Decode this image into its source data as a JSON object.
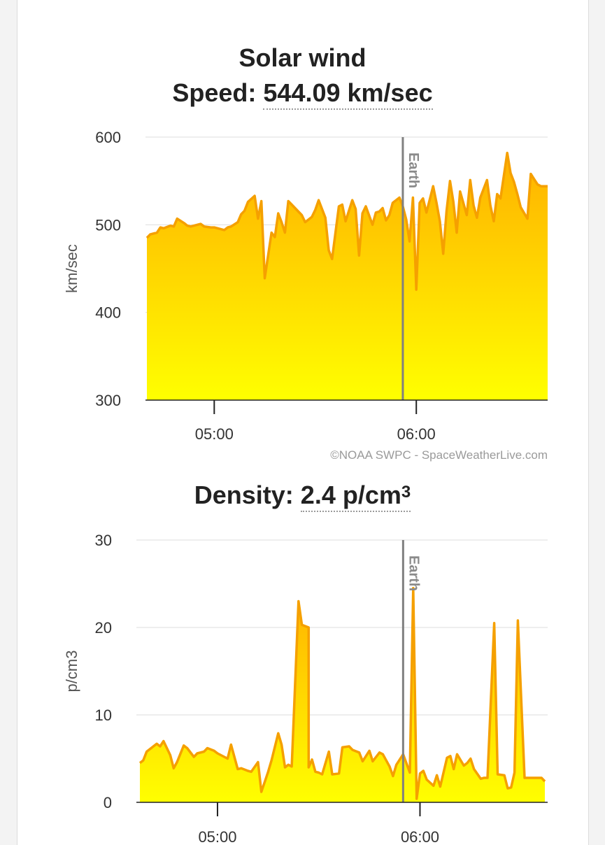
{
  "speed_panel": {
    "title": "Solar wind",
    "label": "Speed:",
    "value": "544.09 km/sec",
    "credit": "©NOAA SWPC - SpaceWeatherLive.com"
  },
  "density_panel": {
    "label": "Density:",
    "value_main": "2.4 p/cm",
    "value_sup": "3"
  },
  "colors": {
    "line": "#f5a000",
    "fill_top": "#ffb000",
    "fill_bottom": "#ffff00",
    "marker": "#808080",
    "grid": "#dddddd"
  },
  "chart_data": [
    {
      "type": "area",
      "ylabel": "km/sec",
      "ylim": [
        300,
        600
      ],
      "y_ticks": [
        "600",
        "500",
        "400",
        "300"
      ],
      "x_ticks": [
        "05:00",
        "06:00"
      ],
      "xlim": [
        "04:40",
        "06:39"
      ],
      "marker": {
        "label": "Earth",
        "x": "05:56"
      },
      "series": [
        {
          "x": [
            "04:40",
            "04:41",
            "04:43",
            "04:44",
            "04:45",
            "04:47",
            "04:48",
            "04:49",
            "04:51",
            "04:52",
            "04:53",
            "04:55",
            "04:56",
            "04:57",
            "04:59",
            "05:00",
            "05:01",
            "05:03",
            "05:04",
            "05:05",
            "05:07",
            "05:08",
            "05:09",
            "05:10",
            "05:12",
            "05:13",
            "05:14",
            "05:15",
            "05:17",
            "05:18",
            "05:19",
            "05:20",
            "05:21",
            "05:22",
            "05:23",
            "05:25",
            "05:26",
            "05:27",
            "05:29",
            "05:30",
            "05:31",
            "05:33",
            "05:34",
            "05:35",
            "05:37",
            "05:38",
            "05:39",
            "05:41",
            "05:42",
            "05:43",
            "05:44",
            "05:45",
            "05:47",
            "05:48",
            "05:49",
            "05:50",
            "05:51",
            "05:52",
            "05:53",
            "05:55",
            "05:56",
            "05:57",
            "05:58",
            "05:59",
            "06:00",
            "06:01",
            "06:02",
            "06:03",
            "06:05",
            "06:06",
            "06:07",
            "06:08",
            "06:09",
            "06:10",
            "06:11",
            "06:12",
            "06:13",
            "06:15",
            "06:16",
            "06:17",
            "06:18",
            "06:19",
            "06:21",
            "06:22",
            "06:23",
            "06:24",
            "06:25",
            "06:27",
            "06:28",
            "06:29",
            "06:30",
            "06:31",
            "06:33",
            "06:34",
            "06:35",
            "06:36",
            "06:37",
            "06:38",
            "06:39"
          ],
          "values": [
            485,
            489,
            491,
            497,
            496,
            499,
            498,
            507,
            502,
            499,
            498,
            500,
            501,
            498,
            497,
            497,
            496,
            494,
            497,
            498,
            503,
            512,
            516,
            526,
            533,
            507,
            527,
            439,
            491,
            486,
            513,
            503,
            491,
            527,
            523,
            515,
            511,
            503,
            509,
            517,
            528,
            508,
            471,
            461,
            521,
            523,
            504,
            528,
            518,
            465,
            513,
            521,
            500,
            514,
            515,
            519,
            505,
            511,
            525,
            531,
            521,
            506,
            481,
            531,
            426,
            525,
            530,
            514,
            544,
            525,
            504,
            467,
            516,
            550,
            526,
            491,
            538,
            511,
            551,
            522,
            508,
            531,
            551,
            522,
            504,
            535,
            530,
            582,
            559,
            549,
            535,
            520,
            507,
            558,
            552,
            546,
            544,
            544,
            544
          ]
        }
      ]
    },
    {
      "type": "area",
      "ylabel": "p/cm3",
      "ylim": [
        0,
        30
      ],
      "y_ticks": [
        "30",
        "20",
        "10",
        "0"
      ],
      "x_ticks": [
        "05:00",
        "06:00"
      ],
      "xlim": [
        "04:37",
        "06:37"
      ],
      "marker": {
        "label": "Earth",
        "x": "05:55"
      },
      "series": [
        {
          "x": [
            "04:37",
            "04:38",
            "04:39",
            "04:40",
            "04:42",
            "04:43",
            "04:44",
            "04:46",
            "04:47",
            "04:48",
            "04:50",
            "04:51",
            "04:53",
            "04:54",
            "04:56",
            "04:57",
            "04:59",
            "05:00",
            "05:02",
            "05:03",
            "05:04",
            "05:06",
            "05:07",
            "05:09",
            "05:10",
            "05:12",
            "05:13",
            "05:15",
            "05:16",
            "05:18",
            "05:19",
            "05:20",
            "05:21",
            "05:22",
            "05:24",
            "05:25",
            "05:27",
            "05:27",
            "05:28",
            "05:29",
            "05:30",
            "05:31",
            "05:33",
            "05:34",
            "05:36",
            "05:37",
            "05:39",
            "05:40",
            "05:42",
            "05:43",
            "05:45",
            "05:46",
            "05:48",
            "05:49",
            "05:51",
            "05:52",
            "05:53",
            "05:55",
            "05:57",
            "05:58",
            "05:59",
            "06:00",
            "06:01",
            "06:02",
            "06:04",
            "06:05",
            "06:06",
            "06:08",
            "06:09",
            "06:10",
            "06:11",
            "06:13",
            "06:14",
            "06:15",
            "06:16",
            "06:18",
            "06:19",
            "06:20",
            "06:22",
            "06:23",
            "06:25",
            "06:26",
            "06:27",
            "06:28",
            "06:29",
            "06:31",
            "06:32",
            "06:33",
            "06:34",
            "06:35",
            "06:36",
            "06:37"
          ],
          "values": [
            4.5,
            4.8,
            5.8,
            6.1,
            6.7,
            6.4,
            7.0,
            5.4,
            3.9,
            4.6,
            6.5,
            6.2,
            5.2,
            5.6,
            5.8,
            6.2,
            5.9,
            5.6,
            5.2,
            5.0,
            6.6,
            3.8,
            3.9,
            3.6,
            3.5,
            4.6,
            1.2,
            3.5,
            4.8,
            7.9,
            6.6,
            4.0,
            4.3,
            4.1,
            23.0,
            20.3,
            20.0,
            4.0,
            4.9,
            3.5,
            3.4,
            3.2,
            5.8,
            3.2,
            3.3,
            6.3,
            6.4,
            6.0,
            5.7,
            4.7,
            5.9,
            4.7,
            5.7,
            5.5,
            4.1,
            3.0,
            4.3,
            5.5,
            3.4,
            24.5,
            0.4,
            3.3,
            3.6,
            2.6,
            1.9,
            3.1,
            1.8,
            5.1,
            5.3,
            3.8,
            5.5,
            4.2,
            4.5,
            5.0,
            3.8,
            2.7,
            2.8,
            2.8,
            20.5,
            3.2,
            3.1,
            1.6,
            1.7,
            3.4,
            20.8,
            2.8,
            2.8,
            2.8,
            2.8,
            2.8,
            2.8,
            2.4
          ]
        }
      ]
    }
  ]
}
